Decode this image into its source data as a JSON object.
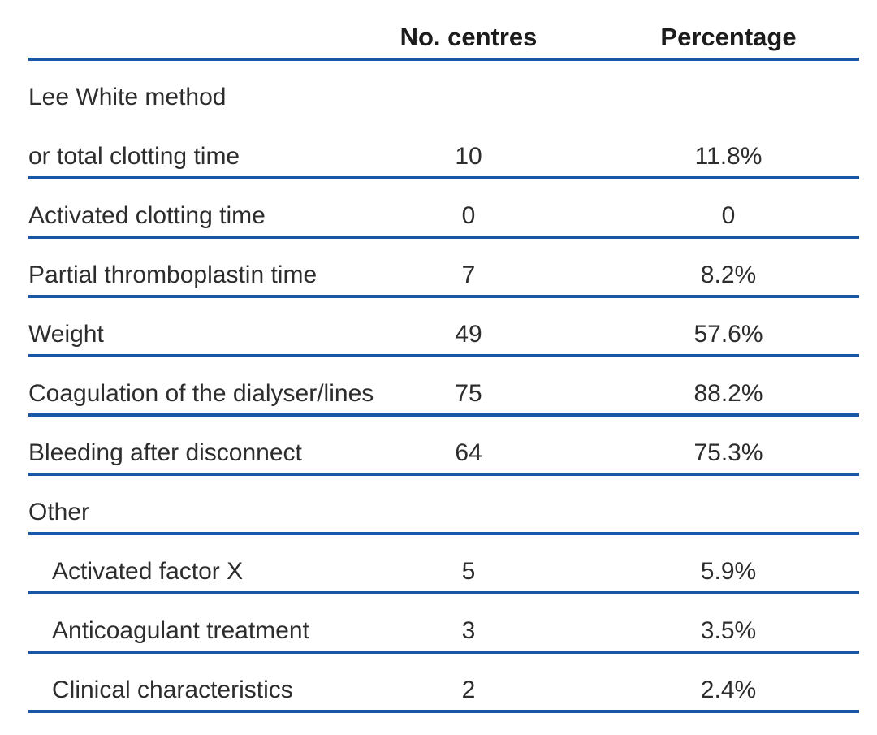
{
  "table": {
    "columns": {
      "label": "",
      "centres": "No. centres",
      "percentage": "Percentage"
    },
    "rows": [
      {
        "label": "Lee White method",
        "centres": "",
        "percentage": "",
        "indent": false,
        "rule": false
      },
      {
        "label": "or total clotting time",
        "centres": "10",
        "percentage": "11.8%",
        "indent": false,
        "rule": true
      },
      {
        "label": "Activated clotting time",
        "centres": "0",
        "percentage": "0",
        "indent": false,
        "rule": true
      },
      {
        "label": "Partial thromboplastin time",
        "centres": "7",
        "percentage": "8.2%",
        "indent": false,
        "rule": true
      },
      {
        "label": "Weight",
        "centres": "49",
        "percentage": "57.6%",
        "indent": false,
        "rule": true
      },
      {
        "label": "Coagulation of the dialyser/lines",
        "centres": "75",
        "percentage": "88.2%",
        "indent": false,
        "rule": true
      },
      {
        "label": "Bleeding after disconnect",
        "centres": "64",
        "percentage": "75.3%",
        "indent": false,
        "rule": true
      },
      {
        "label": "Other",
        "centres": "",
        "percentage": "",
        "indent": false,
        "rule": true
      },
      {
        "label": "Activated factor X",
        "centres": "5",
        "percentage": "5.9%",
        "indent": true,
        "rule": true
      },
      {
        "label": "Anticoagulant treatment",
        "centres": "3",
        "percentage": "3.5%",
        "indent": true,
        "rule": true
      },
      {
        "label": "Clinical characteristics",
        "centres": "2",
        "percentage": "2.4%",
        "indent": true,
        "rule": true
      }
    ],
    "colors": {
      "rule": "#1a56a6",
      "text": "#2d2d2d",
      "header_text": "#1c1c1c"
    }
  }
}
